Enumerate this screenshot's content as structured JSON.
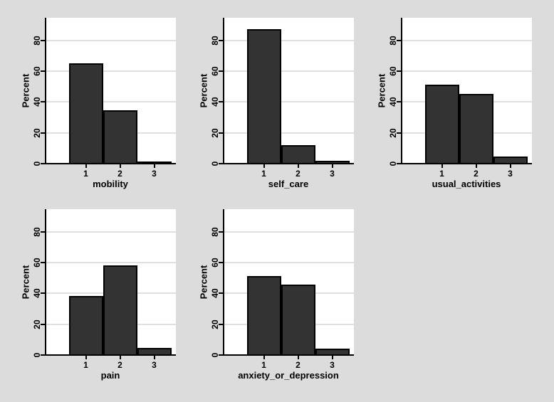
{
  "colors": {
    "background": "#dcdcdc",
    "plot_background": "#ffffff",
    "gridline": "#e0e0e0",
    "bar_fill": "#333333",
    "bar_border": "#000000",
    "axis": "#000000",
    "text": "#000000"
  },
  "axes": {
    "ylabel": "Percent",
    "y_ticks": [
      0,
      20,
      40,
      60,
      80
    ],
    "x_ticks": [
      "1",
      "2",
      "3"
    ],
    "ylim": [
      0,
      95
    ],
    "grid": true
  },
  "chart_data": [
    {
      "type": "bar",
      "title": "mobility",
      "xlabel": "mobility",
      "ylabel": "Percent",
      "categories": [
        "1",
        "2",
        "3"
      ],
      "values": [
        64.5,
        34.2,
        1.1
      ],
      "ylim": [
        0,
        95
      ],
      "y_ticks": [
        0,
        20,
        40,
        60,
        80
      ],
      "grid": true,
      "legend": "none"
    },
    {
      "type": "bar",
      "title": "self_care",
      "xlabel": "self_care",
      "ylabel": "Percent",
      "categories": [
        "1",
        "2",
        "3"
      ],
      "values": [
        86.9,
        11.6,
        1.5
      ],
      "ylim": [
        0,
        95
      ],
      "y_ticks": [
        0,
        20,
        40,
        60,
        80
      ],
      "grid": true,
      "legend": "none"
    },
    {
      "type": "bar",
      "title": "usual_activities",
      "xlabel": "usual_activities",
      "ylabel": "Percent",
      "categories": [
        "1",
        "2",
        "3"
      ],
      "values": [
        50.9,
        44.7,
        4.3
      ],
      "ylim": [
        0,
        95
      ],
      "y_ticks": [
        0,
        20,
        40,
        60,
        80
      ],
      "grid": true,
      "legend": "none"
    },
    {
      "type": "bar",
      "title": "pain",
      "xlabel": "pain",
      "ylabel": "Percent",
      "categories": [
        "1",
        "2",
        "3"
      ],
      "values": [
        38.0,
        57.7,
        4.3
      ],
      "ylim": [
        0,
        95
      ],
      "y_ticks": [
        0,
        20,
        40,
        60,
        80
      ],
      "grid": true,
      "legend": "none"
    },
    {
      "type": "bar",
      "title": "anxiety_or_depression",
      "xlabel": "anxiety_or_depression",
      "ylabel": "Percent",
      "categories": [
        "1",
        "2",
        "3"
      ],
      "values": [
        50.8,
        45.2,
        3.7
      ],
      "ylim": [
        0,
        95
      ],
      "y_ticks": [
        0,
        20,
        40,
        60,
        80
      ],
      "grid": true,
      "legend": "none"
    }
  ]
}
